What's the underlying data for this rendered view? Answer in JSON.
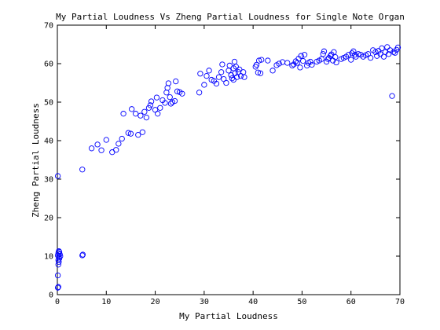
{
  "chart_data": {
    "type": "scatter",
    "title": "My Partial Loudness Vs Zheng Partial Loudness for Single Note Organ",
    "xlabel": "My Partial Loudness",
    "ylabel": "Zheng Partial Loudness",
    "xlim": [
      0,
      70
    ],
    "ylim": [
      0,
      70
    ],
    "xticks": [
      0,
      10,
      20,
      30,
      40,
      50,
      60,
      70
    ],
    "yticks": [
      0,
      10,
      20,
      30,
      40,
      50,
      60,
      70
    ],
    "grid": false,
    "marker_color": "#0000ff",
    "marker": "open-circle",
    "series": [
      {
        "points": [
          [
            0.1,
            1.8
          ],
          [
            0.2,
            2.0
          ],
          [
            0.1,
            5.0
          ],
          [
            0.2,
            7.8
          ],
          [
            0.3,
            8.5
          ],
          [
            0.2,
            9.0
          ],
          [
            0.4,
            9.4
          ],
          [
            0.3,
            9.9
          ],
          [
            0.1,
            10.2
          ],
          [
            0.5,
            10.5
          ],
          [
            0.2,
            10.8
          ],
          [
            0.4,
            11.1
          ],
          [
            0.3,
            11.3
          ],
          [
            0.6,
            10.0
          ],
          [
            0.1,
            30.8
          ],
          [
            5.1,
            10.2
          ],
          [
            5.2,
            10.4
          ],
          [
            5.1,
            32.5
          ],
          [
            7.0,
            38.0
          ],
          [
            8.2,
            39.0
          ],
          [
            9.0,
            37.5
          ],
          [
            10.0,
            40.2
          ],
          [
            11.2,
            37.0
          ],
          [
            12.0,
            37.6
          ],
          [
            12.5,
            39.2
          ],
          [
            13.2,
            40.5
          ],
          [
            13.5,
            47.0
          ],
          [
            14.5,
            42.0
          ],
          [
            15.0,
            41.8
          ],
          [
            15.2,
            48.2
          ],
          [
            16.0,
            47.0
          ],
          [
            16.5,
            41.5
          ],
          [
            17.0,
            46.5
          ],
          [
            17.4,
            42.2
          ],
          [
            17.8,
            47.5
          ],
          [
            18.2,
            46.0
          ],
          [
            18.7,
            48.5
          ],
          [
            19.0,
            49.2
          ],
          [
            19.2,
            50.2
          ],
          [
            20.0,
            48.0
          ],
          [
            20.3,
            51.2
          ],
          [
            20.5,
            47.0
          ],
          [
            21.0,
            48.5
          ],
          [
            21.5,
            50.5
          ],
          [
            22.0,
            49.8
          ],
          [
            22.3,
            52.5
          ],
          [
            22.5,
            53.7
          ],
          [
            22.7,
            54.9
          ],
          [
            23.0,
            51.3
          ],
          [
            23.2,
            49.6
          ],
          [
            23.5,
            50.0
          ],
          [
            24.0,
            50.3
          ],
          [
            24.2,
            55.4
          ],
          [
            24.5,
            52.8
          ],
          [
            25.0,
            52.6
          ],
          [
            25.5,
            52.2
          ],
          [
            29.0,
            52.5
          ],
          [
            29.2,
            57.4
          ],
          [
            30.0,
            54.5
          ],
          [
            30.5,
            56.8
          ],
          [
            31.0,
            58.2
          ],
          [
            31.5,
            55.8
          ],
          [
            32.0,
            55.5
          ],
          [
            32.5,
            54.8
          ],
          [
            33.0,
            56.5
          ],
          [
            33.5,
            57.8
          ],
          [
            33.7,
            59.8
          ],
          [
            34.0,
            56.0
          ],
          [
            34.5,
            55.0
          ],
          [
            35.0,
            58.2
          ],
          [
            35.2,
            59.5
          ],
          [
            35.5,
            57.0
          ],
          [
            35.7,
            56.2
          ],
          [
            36.0,
            58.8
          ],
          [
            36.0,
            55.8
          ],
          [
            36.2,
            60.5
          ],
          [
            36.3,
            57.5
          ],
          [
            36.5,
            59.2
          ],
          [
            36.7,
            56.5
          ],
          [
            37.0,
            57.8
          ],
          [
            37.2,
            58.5
          ],
          [
            37.5,
            56.8
          ],
          [
            38.0,
            57.8
          ],
          [
            38.2,
            56.5
          ],
          [
            40.5,
            59.2
          ],
          [
            40.7,
            59.7
          ],
          [
            41.0,
            57.7
          ],
          [
            41.2,
            60.8
          ],
          [
            41.5,
            57.5
          ],
          [
            41.7,
            61.0
          ],
          [
            43.0,
            60.8
          ],
          [
            44.0,
            58.2
          ],
          [
            44.8,
            59.6
          ],
          [
            45.3,
            60.0
          ],
          [
            46.0,
            60.4
          ],
          [
            47.0,
            60.2
          ],
          [
            48.0,
            59.5
          ],
          [
            48.3,
            59.8
          ],
          [
            48.7,
            60.6
          ],
          [
            49.0,
            60.2
          ],
          [
            49.3,
            61.3
          ],
          [
            49.6,
            59.0
          ],
          [
            49.8,
            62.0
          ],
          [
            50.2,
            60.7
          ],
          [
            50.5,
            62.3
          ],
          [
            51.0,
            59.5
          ],
          [
            51.3,
            60.2
          ],
          [
            51.7,
            60.5
          ],
          [
            52.0,
            59.7
          ],
          [
            53.0,
            60.5
          ],
          [
            53.5,
            60.8
          ],
          [
            54.0,
            61.2
          ],
          [
            54.3,
            62.5
          ],
          [
            54.5,
            63.2
          ],
          [
            55.0,
            60.5
          ],
          [
            55.3,
            61.2
          ],
          [
            55.5,
            61.5
          ],
          [
            55.8,
            62.0
          ],
          [
            56.0,
            62.4
          ],
          [
            56.3,
            60.8
          ],
          [
            56.5,
            63.0
          ],
          [
            56.8,
            61.7
          ],
          [
            57.0,
            60.3
          ],
          [
            58.0,
            61.2
          ],
          [
            58.5,
            61.5
          ],
          [
            59.0,
            61.8
          ],
          [
            59.5,
            62.3
          ],
          [
            60.0,
            61.0
          ],
          [
            60.2,
            62.7
          ],
          [
            60.5,
            63.2
          ],
          [
            60.8,
            62.3
          ],
          [
            61.0,
            61.8
          ],
          [
            61.5,
            62.5
          ],
          [
            62.0,
            62.3
          ],
          [
            62.5,
            61.8
          ],
          [
            63.0,
            62.2
          ],
          [
            63.5,
            62.5
          ],
          [
            64.0,
            61.5
          ],
          [
            64.5,
            63.5
          ],
          [
            65.0,
            63.0
          ],
          [
            65.3,
            62.0
          ],
          [
            65.6,
            63.3
          ],
          [
            66.0,
            62.5
          ],
          [
            66.3,
            64.0
          ],
          [
            66.7,
            61.8
          ],
          [
            67.0,
            63.0
          ],
          [
            67.4,
            64.3
          ],
          [
            67.7,
            62.5
          ],
          [
            68.0,
            63.5
          ],
          [
            68.4,
            51.6
          ],
          [
            68.7,
            63.0
          ],
          [
            69.0,
            62.8
          ],
          [
            69.3,
            63.6
          ],
          [
            69.6,
            64.2
          ]
        ]
      }
    ]
  }
}
